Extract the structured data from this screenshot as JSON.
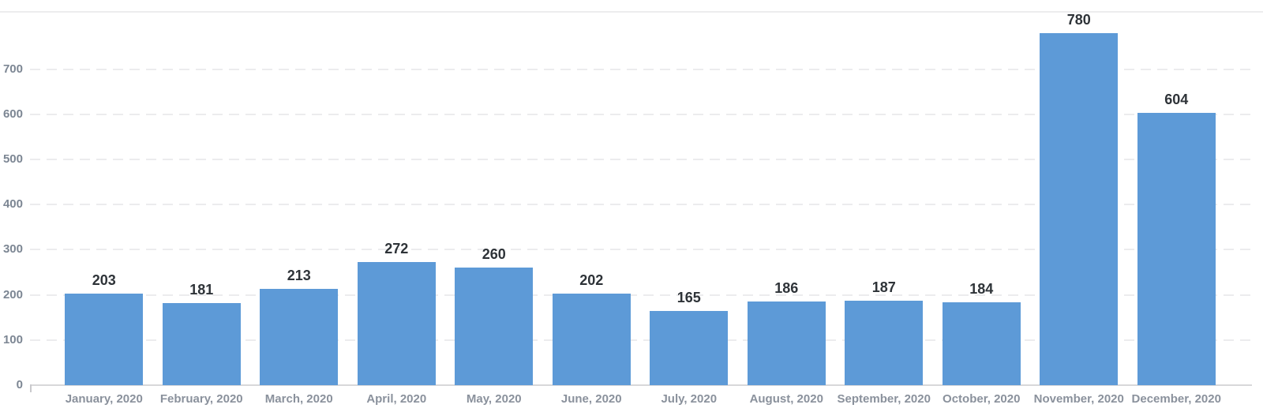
{
  "chart_data": {
    "type": "bar",
    "title": "",
    "xlabel": "",
    "ylabel": "",
    "categories": [
      "January, 2020",
      "February, 2020",
      "March, 2020",
      "April, 2020",
      "May, 2020",
      "June, 2020",
      "July, 2020",
      "August, 2020",
      "September, 2020",
      "October, 2020",
      "November, 2020",
      "December, 2020"
    ],
    "values": [
      203,
      181,
      213,
      272,
      260,
      202,
      165,
      186,
      187,
      184,
      780,
      604
    ],
    "yticks": [
      0,
      100,
      200,
      300,
      400,
      500,
      600,
      700
    ],
    "ylim": [
      0,
      827
    ],
    "grid": "horizontal-dashed",
    "legend": "none",
    "colors": {
      "bar": "#5d9ad7",
      "value_label": "#2e3338",
      "axis_label": "#8a919c",
      "ytick_label": "#7c8693",
      "gridline": "#ececee",
      "axis_line": "#d8d8da",
      "top_border": "#ededee",
      "background": "#ffffff"
    }
  }
}
